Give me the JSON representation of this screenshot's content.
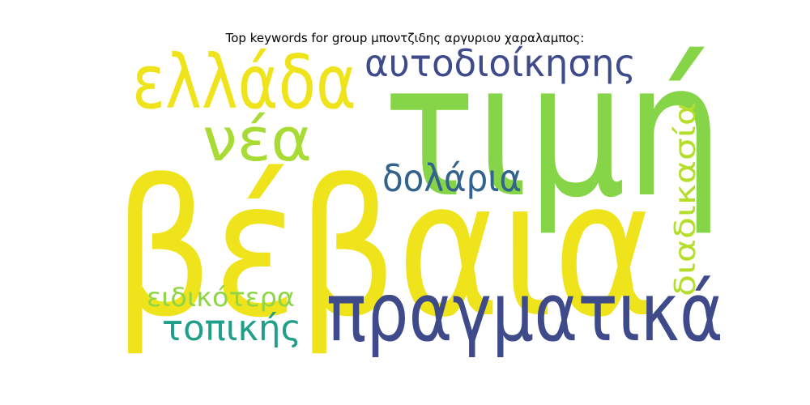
{
  "title": "Top keywords for group μποντζιδης αργυριου χαραλαμπος:",
  "words": [
    {
      "text": "βέβαια",
      "color": "#efe31c",
      "rotated": false
    },
    {
      "text": "τιμή",
      "color": "#86d549",
      "rotated": false
    },
    {
      "text": "πραγματικά",
      "color": "#3e4a89",
      "rotated": false
    },
    {
      "text": "ελλάδα",
      "color": "#efe31c",
      "rotated": false
    },
    {
      "text": "αυτοδιοίκησης",
      "color": "#3e4a89",
      "rotated": false
    },
    {
      "text": "νέα",
      "color": "#a8db34",
      "rotated": false
    },
    {
      "text": "δολάρια",
      "color": "#33638d",
      "rotated": false
    },
    {
      "text": "διαδικασία",
      "color": "#b5de2b",
      "rotated": true
    },
    {
      "text": "τοπικής",
      "color": "#1f9e89",
      "rotated": false
    },
    {
      "text": "ειδικότερα",
      "color": "#8ed645",
      "rotated": false
    }
  ]
}
